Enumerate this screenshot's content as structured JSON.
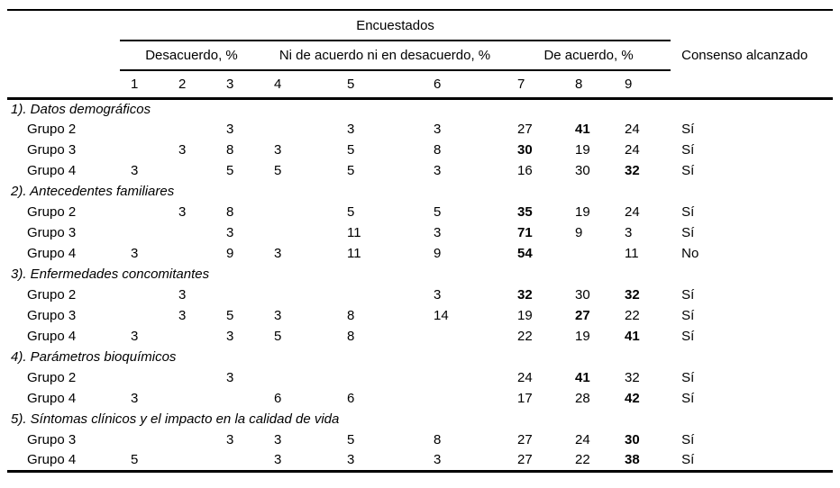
{
  "table": {
    "header": {
      "respondents": "Encuestados",
      "consensus": "Consenso alcanzado",
      "groups": [
        {
          "label": "Desacuerdo, %"
        },
        {
          "label": "Ni de acuerdo ni en desacuerdo, %"
        },
        {
          "label": "De acuerdo, %"
        }
      ],
      "scale": [
        "1",
        "2",
        "3",
        "4",
        "5",
        "6",
        "7",
        "8",
        "9"
      ]
    },
    "sections": [
      {
        "title": "1). Datos demográficos",
        "rows": [
          {
            "label": "Grupo 2",
            "values": [
              "",
              "",
              "3",
              "",
              "3",
              "3",
              "27",
              "41",
              "24"
            ],
            "bold": [
              7
            ],
            "consensus": "Sí"
          },
          {
            "label": "Grupo 3",
            "values": [
              "",
              "3",
              "8",
              "3",
              "5",
              "8",
              "30",
              "19",
              "24"
            ],
            "bold": [
              6
            ],
            "consensus": "Sí"
          },
          {
            "label": "Grupo 4",
            "values": [
              "3",
              "",
              "5",
              "5",
              "5",
              "3",
              "16",
              "30",
              "32"
            ],
            "bold": [
              8
            ],
            "consensus": "Sí"
          }
        ]
      },
      {
        "title": "2). Antecedentes familiares",
        "rows": [
          {
            "label": "Grupo 2",
            "values": [
              "",
              "3",
              "8",
              "",
              "5",
              "5",
              "35",
              "19",
              "24"
            ],
            "bold": [
              6
            ],
            "consensus": "Sí"
          },
          {
            "label": "Grupo 3",
            "values": [
              "",
              "",
              "3",
              "",
              "11",
              "3",
              "71",
              "9",
              "3"
            ],
            "bold": [
              6
            ],
            "consensus": "Sí"
          },
          {
            "label": "Grupo 4",
            "values": [
              "3",
              "",
              "9",
              "3",
              "11",
              "9",
              "54",
              "",
              "11"
            ],
            "bold": [
              6
            ],
            "consensus": "No"
          }
        ]
      },
      {
        "title": "3). Enfermedades concomitantes",
        "rows": [
          {
            "label": "Grupo 2",
            "values": [
              "",
              "3",
              "",
              "",
              "",
              "3",
              "32",
              "30",
              "32"
            ],
            "bold": [
              6,
              8
            ],
            "consensus": "Sí"
          },
          {
            "label": "Grupo 3",
            "values": [
              "",
              "3",
              "5",
              "3",
              "8",
              "14",
              "19",
              "27",
              "22"
            ],
            "bold": [
              7
            ],
            "consensus": "Sí"
          },
          {
            "label": "Grupo 4",
            "values": [
              "3",
              "",
              "3",
              "5",
              "8",
              "",
              "22",
              "19",
              "41"
            ],
            "bold": [
              8
            ],
            "consensus": "Sí"
          }
        ]
      },
      {
        "title": "4). Parámetros bioquímicos",
        "rows": [
          {
            "label": "Grupo 2",
            "values": [
              "",
              "",
              "3",
              "",
              "",
              "",
              "24",
              "41",
              "32"
            ],
            "bold": [
              7
            ],
            "consensus": "Sí"
          },
          {
            "label": "Grupo 4",
            "values": [
              "3",
              "",
              "",
              "6",
              "6",
              "",
              "17",
              "28",
              "42"
            ],
            "bold": [
              8
            ],
            "consensus": "Sí"
          }
        ]
      },
      {
        "title": "5). Síntomas clínicos y el impacto en la calidad de vida",
        "rows": [
          {
            "label": "Grupo 3",
            "values": [
              "",
              "",
              "3",
              "3",
              "5",
              "8",
              "27",
              "24",
              "30"
            ],
            "bold": [
              8
            ],
            "consensus": "Sí"
          },
          {
            "label": "Grupo 4",
            "values": [
              "5",
              "",
              "",
              "3",
              "3",
              "3",
              "27",
              "22",
              "38"
            ],
            "bold": [
              8
            ],
            "consensus": "Sí"
          }
        ]
      }
    ]
  }
}
